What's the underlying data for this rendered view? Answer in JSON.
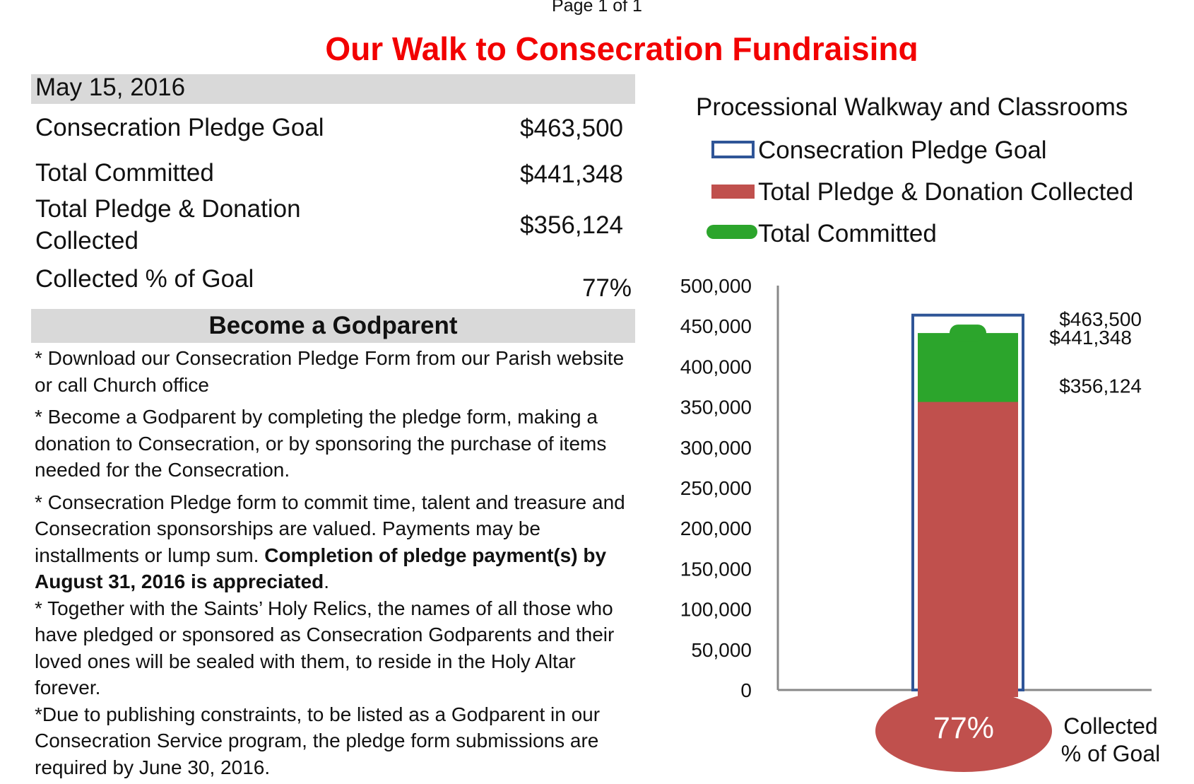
{
  "page_header": "Page 1 of 1",
  "title": "Our Walk to Consecration Fundraising",
  "summary": {
    "date": "May 15, 2016",
    "rows": [
      {
        "label": "Consecration Pledge Goal",
        "value": "$463,500"
      },
      {
        "label": "Total Committed",
        "value": "$441,348"
      },
      {
        "label_line1": "Total Pledge & Donation",
        "label_line2": "Collected",
        "value": "$356,124"
      },
      {
        "label": "Collected % of Goal",
        "value": "77%"
      }
    ]
  },
  "godparent": {
    "heading": "Become a Godparent",
    "p1": "* Download our Consecration Pledge Form from our Parish website or call Church office",
    "p2": "* Become a Godparent by completing the pledge form, making a donation to Consecration, or by sponsoring the purchase of items needed for the Consecration.",
    "p3_normal": "* Consecration Pledge form to commit time, talent and treasure and Consecration sponsorships are valued. Payments may be installments or lump sum.",
    "p3_bold": "Completion of pledge payment(s) by August 31, 2016 is appreciated",
    "p3_tail": ".",
    "p4": "*  Together with the Saints’ Holy Relics, the names of all those who have pledged or sponsored as Consecration Godparents and their loved ones will be sealed with them, to reside in the Holy Altar forever.",
    "p5": "*Due to publishing constraints, to be listed as a Godparent in our Consecration Service program, the pledge form submissions are required by June 30, 2016."
  },
  "chart_data": {
    "type": "bar",
    "title": "Processional Walkway and Classrooms",
    "y_ticks": [
      "0",
      "50,000",
      "100,000",
      "150,000",
      "200,000",
      "250,000",
      "300,000",
      "350,000",
      "400,000",
      "450,000",
      "500,000"
    ],
    "ylim": [
      0,
      500000
    ],
    "legend_position": "top",
    "series": [
      {
        "name": "Consecration Pledge Goal",
        "value": 463500,
        "label": "$463,500",
        "color": "#2f5597",
        "style": "outline"
      },
      {
        "name": "Total Pledge & Donation Collected",
        "value": 356124,
        "label": "$356,124",
        "color": "#c0504d",
        "style": "fill"
      },
      {
        "name": "Total Committed",
        "value": 441348,
        "label": "$441,348",
        "color": "#2ca52c",
        "style": "fill"
      }
    ],
    "bulb_label": "77%",
    "bulb_caption_line1": "Collected",
    "bulb_caption_line2": "% of Goal",
    "grid": false
  }
}
